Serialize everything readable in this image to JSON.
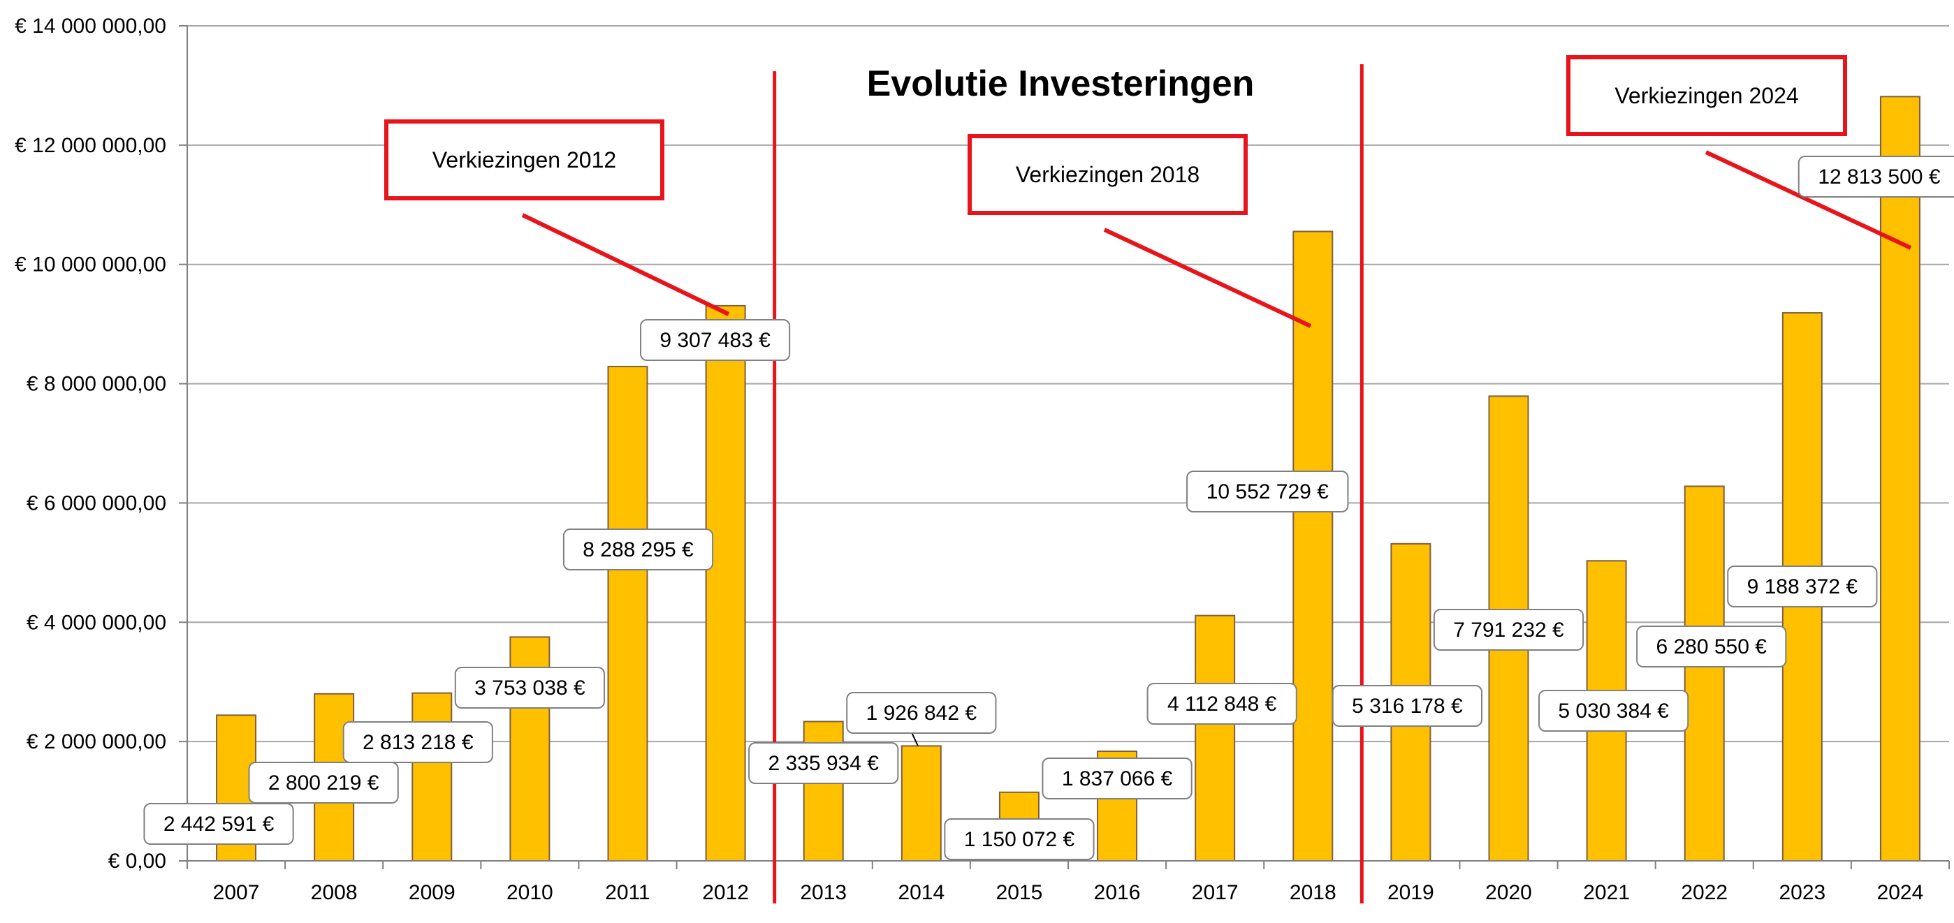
{
  "chart_data": {
    "type": "bar",
    "title": "Evolutie Investeringen",
    "xlabel": "",
    "ylabel": "",
    "ylim": [
      0,
      14000000
    ],
    "grid": true,
    "legend": "none",
    "categories": [
      "2007",
      "2008",
      "2009",
      "2010",
      "2011",
      "2012",
      "2013",
      "2014",
      "2015",
      "2016",
      "2017",
      "2018",
      "2019",
      "2020",
      "2021",
      "2022",
      "2023",
      "2024"
    ],
    "values": [
      2442591,
      2800219,
      2813218,
      3753038,
      8288295,
      9307483,
      2335934,
      1926842,
      1150072,
      1837066,
      4112848,
      10552729,
      5316178,
      7791232,
      5030384,
      6280550,
      9188372,
      12813500
    ],
    "data_labels": [
      "2 442 591 €",
      "2 800 219 €",
      "2 813 218 €",
      "3 753 038 €",
      "8 288 295 €",
      "9 307 483 €",
      "2 335 934 €",
      "1 926 842 €",
      "1 150 072 €",
      "1 837 066 €",
      "4 112 848 €",
      "10 552 729 €",
      "5 316 178 €",
      "7 791 232 €",
      "5 030 384 €",
      "6 280 550 €",
      "9 188 372 €",
      "12 813 500 €"
    ],
    "yticks": [
      0,
      2000000,
      4000000,
      6000000,
      8000000,
      10000000,
      12000000,
      14000000
    ],
    "ytick_labels": [
      "€ 0,00",
      "€ 2 000 000,00",
      "€ 4 000 000,00",
      "€ 6 000 000,00",
      "€ 8 000 000,00",
      "€ 10 000 000,00",
      "€ 12 000 000,00",
      "€ 14 000 000,00"
    ],
    "annotations": [
      {
        "text": "Verkiezingen 2012",
        "after_category": "2012"
      },
      {
        "text": "Verkiezingen 2018",
        "after_category": "2018"
      },
      {
        "text": "Verkiezingen 2024",
        "after_category": "2024"
      }
    ],
    "colors": {
      "bar_fill": "#FFC000",
      "bar_stroke": "#7F5F3F",
      "grid": "#A6A6A6",
      "annotation": "#E8141B",
      "label_border": "#808080"
    }
  }
}
